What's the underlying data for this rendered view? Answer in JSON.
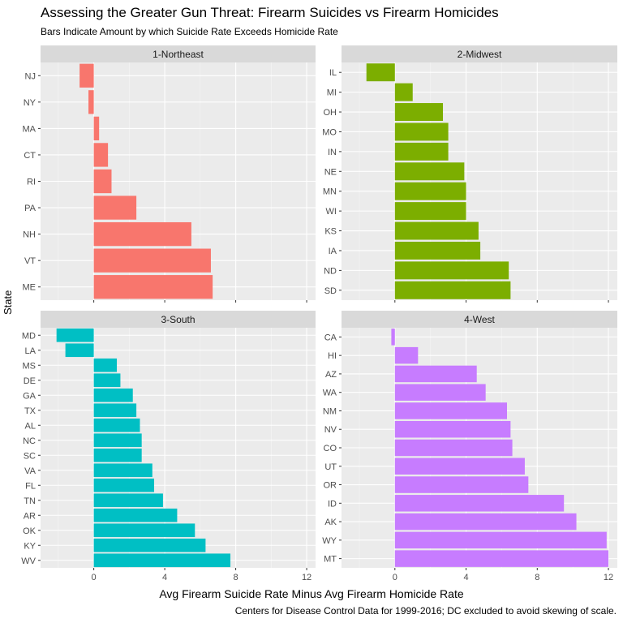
{
  "title": "Assessing the Greater Gun Threat: Firearm Suicides vs Firearm Homicides",
  "subtitle": "Bars Indicate Amount by which Suicide Rate Exceeds Homicide Rate",
  "caption": "Centers for Disease Control Data for 1999-2016; DC excluded to avoid skewing of scale.",
  "chart_data": {
    "type": "bar",
    "orientation": "horizontal",
    "faceted": true,
    "xlabel": "Avg Firearm Suicide Rate Minus Avg Firearm Homicide Rate",
    "ylabel": "State",
    "xlim": [
      -3,
      12.5
    ],
    "xticks": [
      0,
      4,
      8,
      12
    ],
    "grid": true,
    "legend": "none",
    "panels": [
      {
        "name": "1-Northeast",
        "color": "#F8766D",
        "categories": [
          "NJ",
          "NY",
          "MA",
          "CT",
          "RI",
          "PA",
          "NH",
          "VT",
          "ME"
        ],
        "values": [
          -0.8,
          -0.3,
          0.3,
          0.8,
          1.0,
          2.4,
          5.5,
          6.6,
          6.7
        ]
      },
      {
        "name": "2-Midwest",
        "color": "#7CAE00",
        "categories": [
          "IL",
          "MI",
          "OH",
          "MO",
          "IN",
          "NE",
          "MN",
          "WI",
          "KS",
          "IA",
          "ND",
          "SD"
        ],
        "values": [
          -1.6,
          1.0,
          2.7,
          3.0,
          3.0,
          3.9,
          4.0,
          4.0,
          4.7,
          4.8,
          6.4,
          6.5
        ]
      },
      {
        "name": "3-South",
        "color": "#00BFC4",
        "categories": [
          "MD",
          "LA",
          "MS",
          "DE",
          "GA",
          "TX",
          "AL",
          "NC",
          "SC",
          "VA",
          "FL",
          "TN",
          "AR",
          "OK",
          "KY",
          "WV"
        ],
        "values": [
          -2.1,
          -1.6,
          1.3,
          1.5,
          2.2,
          2.4,
          2.6,
          2.7,
          2.7,
          3.3,
          3.4,
          3.9,
          4.7,
          5.7,
          6.3,
          7.7
        ]
      },
      {
        "name": "4-West",
        "color": "#C77CFF",
        "categories": [
          "CA",
          "HI",
          "AZ",
          "WA",
          "NM",
          "NV",
          "CO",
          "UT",
          "OR",
          "ID",
          "AK",
          "WY",
          "MT"
        ],
        "values": [
          -0.2,
          1.3,
          4.6,
          5.1,
          6.3,
          6.5,
          6.6,
          7.3,
          7.5,
          9.5,
          10.2,
          11.9,
          12.0
        ]
      }
    ]
  }
}
